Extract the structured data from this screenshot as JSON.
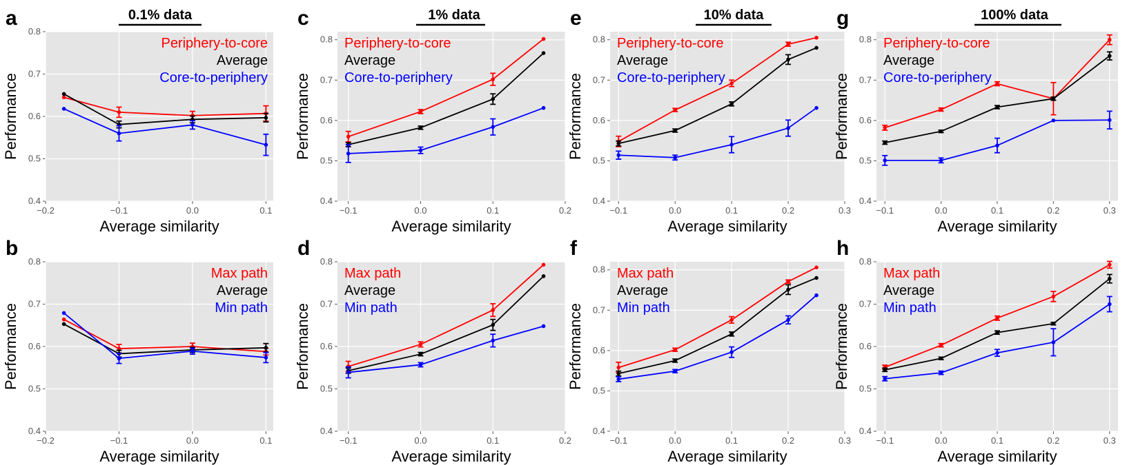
{
  "colors": {
    "red": "#ff0000",
    "black": "#000000",
    "blue": "#0000ff",
    "bg": "#e5e5e5",
    "grid": "#ffffff"
  },
  "columns": [
    {
      "title": "0.1% data"
    },
    {
      "title": "1% data"
    },
    {
      "title": "10% data"
    },
    {
      "title": "100% data"
    }
  ],
  "chart_data": [
    {
      "panel": "a",
      "type": "line",
      "col": 0,
      "row": 0,
      "xlabel": "Average similarity",
      "ylabel": "Performance",
      "xlim": [
        -0.2,
        0.11
      ],
      "ylim": [
        0.4,
        0.8
      ],
      "xticks": [
        -0.2,
        -0.1,
        0.0,
        0.1
      ],
      "xtick_labels": [
        "−0.2",
        "−0.1",
        "0.0",
        "0.1"
      ],
      "yticks": [
        0.4,
        0.5,
        0.6,
        0.7,
        0.8
      ],
      "ytick_labels": [
        "0.4",
        "0.5",
        "0.6",
        "0.7",
        "0.8"
      ],
      "legend_position": "top-right",
      "x": [
        -0.175,
        -0.1,
        0.0,
        0.1
      ],
      "series": [
        {
          "name": "Periphery-to-core",
          "color": "red",
          "values": [
            0.645,
            0.61,
            0.602,
            0.607
          ],
          "err": [
            0,
            0.012,
            0.01,
            0.018
          ]
        },
        {
          "name": "Average",
          "color": "black",
          "values": [
            0.653,
            0.581,
            0.593,
            0.597
          ],
          "err": [
            0,
            0.008,
            0.008,
            0.01
          ]
        },
        {
          "name": "Core-to-periphery",
          "color": "blue",
          "values": [
            0.618,
            0.56,
            0.58,
            0.533
          ],
          "err": [
            0,
            0.018,
            0.01,
            0.025
          ]
        }
      ]
    },
    {
      "panel": "b",
      "type": "line",
      "col": 0,
      "row": 1,
      "xlabel": "Average similarity",
      "ylabel": "Performance",
      "xlim": [
        -0.2,
        0.11
      ],
      "ylim": [
        0.4,
        0.8
      ],
      "xticks": [
        -0.2,
        -0.1,
        0.0,
        0.1
      ],
      "xtick_labels": [
        "−0.2",
        "−0.1",
        "0.0",
        "0.1"
      ],
      "yticks": [
        0.4,
        0.5,
        0.6,
        0.7,
        0.8
      ],
      "ytick_labels": [
        "0.4",
        "0.5",
        "0.6",
        "0.7",
        "0.8"
      ],
      "legend_position": "top-right",
      "x": [
        -0.175,
        -0.1,
        0.0,
        0.1
      ],
      "series": [
        {
          "name": "Max path",
          "color": "red",
          "values": [
            0.664,
            0.595,
            0.6,
            0.588
          ],
          "err": [
            0,
            0.01,
            0.008,
            0.008
          ]
        },
        {
          "name": "Average",
          "color": "black",
          "values": [
            0.653,
            0.583,
            0.592,
            0.597
          ],
          "err": [
            0,
            0.008,
            0.006,
            0.01
          ]
        },
        {
          "name": "Min path",
          "color": "blue",
          "values": [
            0.679,
            0.572,
            0.589,
            0.574
          ],
          "err": [
            0,
            0.012,
            0.007,
            0.012
          ]
        }
      ]
    },
    {
      "panel": "c",
      "type": "line",
      "col": 1,
      "row": 0,
      "xlabel": "Average similarity",
      "ylabel": "Performance",
      "xlim": [
        -0.115,
        0.2
      ],
      "ylim": [
        0.4,
        0.82
      ],
      "xticks": [
        -0.1,
        0.0,
        0.1,
        0.2
      ],
      "xtick_labels": [
        "−0.1",
        "0.0",
        "0.1",
        "0.2"
      ],
      "yticks": [
        0.4,
        0.5,
        0.6,
        0.7,
        0.8
      ],
      "ytick_labels": [
        "0.4",
        "0.5",
        "0.6",
        "0.7",
        "0.8"
      ],
      "legend_position": "top-left",
      "x": [
        -0.1,
        0.0,
        0.1,
        0.17
      ],
      "series": [
        {
          "name": "Periphery-to-core",
          "color": "red",
          "values": [
            0.56,
            0.622,
            0.702,
            0.802
          ],
          "err": [
            0.013,
            0.005,
            0.015,
            0
          ]
        },
        {
          "name": "Average",
          "color": "black",
          "values": [
            0.54,
            0.582,
            0.653,
            0.767
          ],
          "err": [
            0.005,
            0.004,
            0.013,
            0
          ]
        },
        {
          "name": "Core-to-periphery",
          "color": "blue",
          "values": [
            0.518,
            0.526,
            0.584,
            0.631
          ],
          "err": [
            0.022,
            0.008,
            0.02,
            0
          ]
        }
      ]
    },
    {
      "panel": "d",
      "type": "line",
      "col": 1,
      "row": 1,
      "xlabel": "Average similarity",
      "ylabel": "Performance",
      "xlim": [
        -0.115,
        0.2
      ],
      "ylim": [
        0.4,
        0.8
      ],
      "xticks": [
        -0.1,
        0.0,
        0.1,
        0.2
      ],
      "xtick_labels": [
        "−0.1",
        "0.0",
        "0.1",
        "0.2"
      ],
      "yticks": [
        0.4,
        0.5,
        0.6,
        0.7,
        0.8
      ],
      "ytick_labels": [
        "0.4",
        "0.5",
        "0.6",
        "0.7",
        "0.8"
      ],
      "legend_position": "top-left",
      "x": [
        -0.1,
        0.0,
        0.1,
        0.17
      ],
      "series": [
        {
          "name": "Max path",
          "color": "red",
          "values": [
            0.553,
            0.605,
            0.686,
            0.793
          ],
          "err": [
            0.012,
            0.006,
            0.015,
            0
          ]
        },
        {
          "name": "Average",
          "color": "black",
          "values": [
            0.543,
            0.582,
            0.651,
            0.766
          ],
          "err": [
            0.006,
            0.004,
            0.013,
            0
          ]
        },
        {
          "name": "Min path",
          "color": "blue",
          "values": [
            0.539,
            0.557,
            0.614,
            0.648
          ],
          "err": [
            0.013,
            0.005,
            0.015,
            0
          ]
        }
      ]
    },
    {
      "panel": "e",
      "type": "line",
      "col": 2,
      "row": 0,
      "xlabel": "Average similarity",
      "ylabel": "Performance",
      "xlim": [
        -0.115,
        0.3
      ],
      "ylim": [
        0.4,
        0.82
      ],
      "xticks": [
        -0.1,
        0.0,
        0.1,
        0.2,
        0.3
      ],
      "xtick_labels": [
        "−0.1",
        "0.0",
        "0.1",
        "0.2",
        "0.3"
      ],
      "yticks": [
        0.4,
        0.5,
        0.6,
        0.7,
        0.8
      ],
      "ytick_labels": [
        "0.4",
        "0.5",
        "0.6",
        "0.7",
        "0.8"
      ],
      "legend_position": "top-left",
      "x": [
        -0.1,
        0.0,
        0.1,
        0.2,
        0.25
      ],
      "series": [
        {
          "name": "Periphery-to-core",
          "color": "red",
          "values": [
            0.548,
            0.626,
            0.692,
            0.789,
            0.805
          ],
          "err": [
            0.013,
            0.004,
            0.008,
            0.005,
            0
          ]
        },
        {
          "name": "Average",
          "color": "black",
          "values": [
            0.543,
            0.575,
            0.641,
            0.751,
            0.78
          ],
          "err": [
            0.006,
            0.004,
            0.005,
            0.012,
            0
          ]
        },
        {
          "name": "Core-to-periphery",
          "color": "blue",
          "values": [
            0.514,
            0.508,
            0.54,
            0.581,
            0.631
          ],
          "err": [
            0.01,
            0.006,
            0.02,
            0.02,
            0
          ]
        }
      ]
    },
    {
      "panel": "f",
      "type": "line",
      "col": 2,
      "row": 1,
      "xlabel": "Average similarity",
      "ylabel": "Performance",
      "xlim": [
        -0.115,
        0.3
      ],
      "ylim": [
        0.4,
        0.82
      ],
      "xticks": [
        -0.1,
        0.0,
        0.1,
        0.2,
        0.3
      ],
      "xtick_labels": [
        "−0.1",
        "0.0",
        "0.1",
        "0.2",
        "0.3"
      ],
      "yticks": [
        0.4,
        0.5,
        0.6,
        0.7,
        0.8
      ],
      "ytick_labels": [
        "0.4",
        "0.5",
        "0.6",
        "0.7",
        "0.8"
      ],
      "legend_position": "top-left",
      "x": [
        -0.1,
        0.0,
        0.1,
        0.2,
        0.25
      ],
      "series": [
        {
          "name": "Max path",
          "color": "red",
          "values": [
            0.558,
            0.602,
            0.676,
            0.771,
            0.806
          ],
          "err": [
            0.013,
            0.004,
            0.008,
            0.004,
            0
          ]
        },
        {
          "name": "Average",
          "color": "black",
          "values": [
            0.543,
            0.575,
            0.641,
            0.751,
            0.78
          ],
          "err": [
            0.006,
            0.004,
            0.005,
            0.012,
            0
          ]
        },
        {
          "name": "Min path",
          "color": "blue",
          "values": [
            0.529,
            0.549,
            0.596,
            0.676,
            0.737
          ],
          "err": [
            0.006,
            0.004,
            0.013,
            0.01,
            0
          ]
        }
      ]
    },
    {
      "panel": "g",
      "type": "line",
      "col": 3,
      "row": 0,
      "xlabel": "Average similarity",
      "ylabel": "Performance",
      "xlim": [
        -0.115,
        0.315
      ],
      "ylim": [
        0.4,
        0.82
      ],
      "xticks": [
        -0.1,
        0.0,
        0.1,
        0.2,
        0.3
      ],
      "xtick_labels": [
        "−0.1",
        "0.0",
        "0.1",
        "0.2",
        "0.3"
      ],
      "yticks": [
        0.4,
        0.5,
        0.6,
        0.7,
        0.8
      ],
      "ytick_labels": [
        "0.4",
        "0.5",
        "0.6",
        "0.7",
        "0.8"
      ],
      "legend_position": "top-left",
      "x": [
        -0.1,
        0.0,
        0.1,
        0.2,
        0.3
      ],
      "series": [
        {
          "name": "Periphery-to-core",
          "color": "red",
          "values": [
            0.582,
            0.627,
            0.691,
            0.654,
            0.8
          ],
          "err": [
            0.006,
            0.004,
            0.005,
            0.04,
            0.012
          ]
        },
        {
          "name": "Average",
          "color": "black",
          "values": [
            0.545,
            0.573,
            0.633,
            0.654,
            0.76
          ],
          "err": [
            0.004,
            0.003,
            0.004,
            0.004,
            0.01
          ]
        },
        {
          "name": "Core-to-periphery",
          "color": "blue",
          "values": [
            0.501,
            0.501,
            0.538,
            0.6,
            0.601
          ],
          "err": [
            0.012,
            0.006,
            0.018,
            0,
            0.022
          ]
        }
      ]
    },
    {
      "panel": "h",
      "type": "line",
      "col": 3,
      "row": 1,
      "xlabel": "Average similarity",
      "ylabel": "Performance",
      "xlim": [
        -0.115,
        0.315
      ],
      "ylim": [
        0.4,
        0.8
      ],
      "xticks": [
        -0.1,
        0.0,
        0.1,
        0.2,
        0.3
      ],
      "xtick_labels": [
        "−0.1",
        "0.0",
        "0.1",
        "0.2",
        "0.3"
      ],
      "yticks": [
        0.4,
        0.5,
        0.6,
        0.7,
        0.8
      ],
      "ytick_labels": [
        "0.4",
        "0.5",
        "0.6",
        "0.7",
        "0.8"
      ],
      "legend_position": "top-left",
      "x": [
        -0.1,
        0.0,
        0.1,
        0.2,
        0.3
      ],
      "series": [
        {
          "name": "Max path",
          "color": "red",
          "values": [
            0.551,
            0.603,
            0.667,
            0.718,
            0.793
          ],
          "err": [
            0.005,
            0.004,
            0.005,
            0.012,
            0.008
          ]
        },
        {
          "name": "Average",
          "color": "black",
          "values": [
            0.545,
            0.572,
            0.633,
            0.654,
            0.76
          ],
          "err": [
            0.004,
            0.003,
            0.004,
            0.003,
            0.01
          ]
        },
        {
          "name": "Min path",
          "color": "blue",
          "values": [
            0.524,
            0.538,
            0.585,
            0.61,
            0.7
          ],
          "err": [
            0.005,
            0.004,
            0.008,
            0.032,
            0.018
          ]
        }
      ]
    }
  ]
}
